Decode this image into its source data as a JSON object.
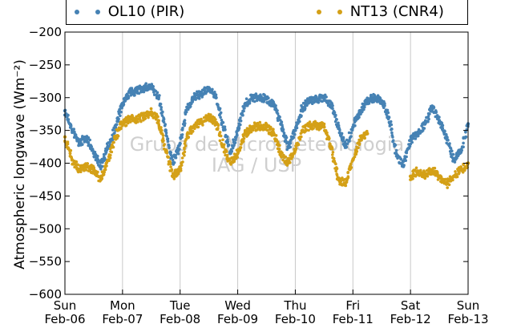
{
  "chart_data": {
    "type": "scatter",
    "title": "",
    "xlabel": "",
    "ylabel": "Atmospheric longwave (Wm⁻²)",
    "ylim": [
      -600,
      -200
    ],
    "yticks": [
      -600,
      -550,
      -500,
      -450,
      -400,
      -350,
      -300,
      -250,
      -200
    ],
    "ytick_labels": [
      "−600",
      "−550",
      "−500",
      "−450",
      "−400",
      "−350",
      "−300",
      "−250",
      "−200"
    ],
    "xlim": [
      "2011-02-06",
      "2011-02-13"
    ],
    "xticks": [
      {
        "date": "2011-02-06",
        "day": "Sun",
        "label": "Feb-06"
      },
      {
        "date": "2011-02-07",
        "day": "Mon",
        "label": "Feb-07"
      },
      {
        "date": "2011-02-08",
        "day": "Tue",
        "label": "Feb-08"
      },
      {
        "date": "2011-02-09",
        "day": "Wed",
        "label": "Feb-09"
      },
      {
        "date": "2011-02-10",
        "day": "Thu",
        "label": "Feb-10"
      },
      {
        "date": "2011-02-11",
        "day": "Fri",
        "label": "Feb-11"
      },
      {
        "date": "2011-02-12",
        "day": "Sat",
        "label": "Feb-12"
      },
      {
        "date": "2011-02-13",
        "day": "Sun",
        "label": "Feb-13"
      }
    ],
    "grid": "vertical",
    "legend_position": "top",
    "series": [
      {
        "name": "OL10 (PIR)",
        "color": "#4682b4",
        "points": [
          [
            "2011-02-06 00:00",
            -320
          ],
          [
            "2011-02-06 03:00",
            -350
          ],
          [
            "2011-02-06 06:00",
            -370
          ],
          [
            "2011-02-06 09:00",
            -360
          ],
          [
            "2011-02-06 12:00",
            -385
          ],
          [
            "2011-02-06 15:00",
            -405
          ],
          [
            "2011-02-06 18:00",
            -375
          ],
          [
            "2011-02-06 21:00",
            -345
          ],
          [
            "2011-02-07 00:00",
            -310
          ],
          [
            "2011-02-07 03:00",
            -292
          ],
          [
            "2011-02-07 06:00",
            -290
          ],
          [
            "2011-02-07 09:00",
            -285
          ],
          [
            "2011-02-07 12:00",
            -283
          ],
          [
            "2011-02-07 15:00",
            -300
          ],
          [
            "2011-02-07 18:00",
            -350
          ],
          [
            "2011-02-07 21:00",
            -400
          ],
          [
            "2011-02-08 00:00",
            -370
          ],
          [
            "2011-02-08 03:00",
            -315
          ],
          [
            "2011-02-08 06:00",
            -298
          ],
          [
            "2011-02-08 09:00",
            -295
          ],
          [
            "2011-02-08 12:00",
            -285
          ],
          [
            "2011-02-08 15:00",
            -300
          ],
          [
            "2011-02-08 18:00",
            -345
          ],
          [
            "2011-02-08 21:00",
            -385
          ],
          [
            "2011-02-09 00:00",
            -350
          ],
          [
            "2011-02-09 03:00",
            -310
          ],
          [
            "2011-02-09 06:00",
            -300
          ],
          [
            "2011-02-09 09:00",
            -300
          ],
          [
            "2011-02-09 12:00",
            -302
          ],
          [
            "2011-02-09 15:00",
            -310
          ],
          [
            "2011-02-09 18:00",
            -340
          ],
          [
            "2011-02-09 21:00",
            -375
          ],
          [
            "2011-02-10 00:00",
            -350
          ],
          [
            "2011-02-10 03:00",
            -315
          ],
          [
            "2011-02-10 06:00",
            -305
          ],
          [
            "2011-02-10 09:00",
            -302
          ],
          [
            "2011-02-10 12:00",
            -300
          ],
          [
            "2011-02-10 15:00",
            -310
          ],
          [
            "2011-02-10 18:00",
            -345
          ],
          [
            "2011-02-10 21:00",
            -375
          ],
          [
            "2011-02-11 00:00",
            -345
          ],
          [
            "2011-02-11 03:00",
            -320
          ],
          [
            "2011-02-11 06:00",
            -305
          ],
          [
            "2011-02-11 09:00",
            -300
          ],
          [
            "2011-02-11 12:00",
            -305
          ],
          [
            "2011-02-11 15:00",
            -330
          ],
          [
            "2011-02-11 18:00",
            -385
          ],
          [
            "2011-02-11 21:00",
            -405
          ],
          [
            "2011-02-12 00:00",
            -365
          ],
          [
            "2011-02-12 03:00",
            -355
          ],
          [
            "2011-02-12 06:00",
            -340
          ],
          [
            "2011-02-12 09:00",
            -315
          ],
          [
            "2011-02-12 12:00",
            -335
          ],
          [
            "2011-02-12 15:00",
            -360
          ],
          [
            "2011-02-12 18:00",
            -395
          ],
          [
            "2011-02-12 21:00",
            -380
          ],
          [
            "2011-02-13 00:00",
            -340
          ]
        ]
      },
      {
        "name": "NT13 (CNR4)",
        "color": "#d4a017",
        "points": [
          [
            "2011-02-06 00:00",
            -360
          ],
          [
            "2011-02-06 03:00",
            -395
          ],
          [
            "2011-02-06 06:00",
            -410
          ],
          [
            "2011-02-06 09:00",
            -405
          ],
          [
            "2011-02-06 12:00",
            -410
          ],
          [
            "2011-02-06 15:00",
            -425
          ],
          [
            "2011-02-06 18:00",
            -395
          ],
          [
            "2011-02-06 21:00",
            -360
          ],
          [
            "2011-02-07 00:00",
            -340
          ],
          [
            "2011-02-07 03:00",
            -333
          ],
          [
            "2011-02-07 06:00",
            -333
          ],
          [
            "2011-02-07 09:00",
            -328
          ],
          [
            "2011-02-07 12:00",
            -322
          ],
          [
            "2011-02-07 15:00",
            -335
          ],
          [
            "2011-02-07 18:00",
            -380
          ],
          [
            "2011-02-07 21:00",
            -420
          ],
          [
            "2011-02-08 00:00",
            -410
          ],
          [
            "2011-02-08 03:00",
            -360
          ],
          [
            "2011-02-08 06:00",
            -342
          ],
          [
            "2011-02-08 09:00",
            -338
          ],
          [
            "2011-02-08 12:00",
            -328
          ],
          [
            "2011-02-08 15:00",
            -340
          ],
          [
            "2011-02-08 18:00",
            -375
          ],
          [
            "2011-02-08 21:00",
            -400
          ],
          [
            "2011-02-09 00:00",
            -385
          ],
          [
            "2011-02-09 03:00",
            -355
          ],
          [
            "2011-02-09 06:00",
            -345
          ],
          [
            "2011-02-09 09:00",
            -343
          ],
          [
            "2011-02-09 12:00",
            -345
          ],
          [
            "2011-02-09 15:00",
            -355
          ],
          [
            "2011-02-09 18:00",
            -385
          ],
          [
            "2011-02-09 21:00",
            -400
          ],
          [
            "2011-02-10 00:00",
            -380
          ],
          [
            "2011-02-10 03:00",
            -350
          ],
          [
            "2011-02-10 06:00",
            -343
          ],
          [
            "2011-02-10 09:00",
            -342
          ],
          [
            "2011-02-10 12:00",
            -345
          ],
          [
            "2011-02-10 15:00",
            -375
          ],
          [
            "2011-02-10 18:00",
            -425
          ],
          [
            "2011-02-10 21:00",
            -430
          ],
          [
            "2011-02-11 00:00",
            -395
          ],
          [
            "2011-02-11 03:00",
            -365
          ],
          [
            "2011-02-11 06:00",
            -355
          ]
        ]
      },
      {
        "name": "",
        "color": "#d4a017",
        "points": [
          [
            "2011-02-12 00:00",
            -420
          ],
          [
            "2011-02-12 03:00",
            -412
          ],
          [
            "2011-02-12 06:00",
            -418
          ],
          [
            "2011-02-12 09:00",
            -410
          ],
          [
            "2011-02-12 12:00",
            -420
          ],
          [
            "2011-02-12 15:00",
            -432
          ],
          [
            "2011-02-12 18:00",
            -420
          ],
          [
            "2011-02-12 21:00",
            -410
          ],
          [
            "2011-02-13 00:00",
            -400
          ]
        ]
      }
    ]
  },
  "legend": {
    "items": [
      {
        "label": "OL10 (PIR)",
        "color": "#4682b4"
      },
      {
        "label": "NT13 (CNR4)",
        "color": "#d4a017"
      }
    ]
  },
  "watermark": {
    "line1": "Grupo de Micrometeorologia",
    "line2": "IAG / USP"
  }
}
